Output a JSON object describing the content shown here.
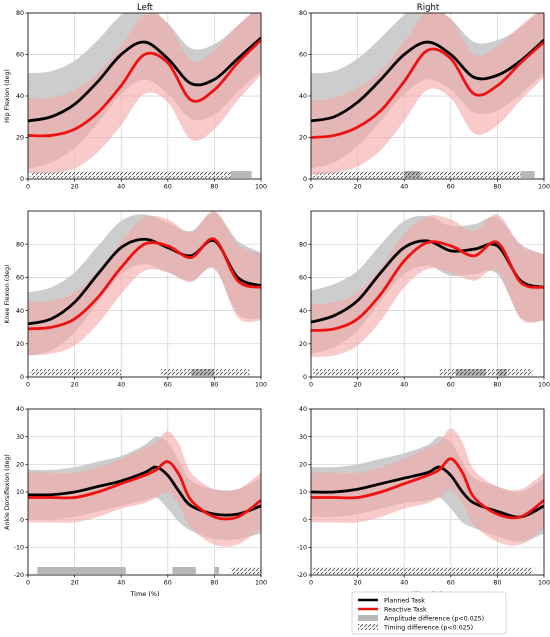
{
  "columns": [
    "Left",
    "Right"
  ],
  "xlabel": "Time (%)",
  "legend": {
    "planned": "Planned Task",
    "reactive": "Reactive Task",
    "amplitude": "Amplitude difference (p<0.025)",
    "timing": "Timing difference  (p<0.025)"
  },
  "colors": {
    "planned": "#000000",
    "reactive": "#ee1111",
    "planned_band": "#c4c4c4",
    "reactive_band": "#f4a6a6",
    "amplitude_bar": "#b8b8b8",
    "grid": "#d0d0d0"
  },
  "chart_data": [
    {
      "type": "line",
      "row": 0,
      "col": 0,
      "ylabel": "Hip Flexion (deg)",
      "xlim": [
        0,
        100
      ],
      "ylim": [
        0,
        80
      ],
      "xticks": [
        0,
        20,
        40,
        60,
        80,
        100
      ],
      "yticks": [
        0,
        20,
        40,
        60,
        80
      ],
      "series": [
        {
          "name": "Planned Task",
          "x": [
            0,
            10,
            20,
            30,
            40,
            50,
            60,
            70,
            80,
            90,
            100
          ],
          "values": [
            28,
            30,
            36,
            47,
            60,
            66,
            58,
            46,
            48,
            58,
            68
          ],
          "sd": [
            23,
            22,
            21,
            20,
            19,
            18,
            17,
            17,
            17,
            16,
            16
          ]
        },
        {
          "name": "Reactive Task",
          "x": [
            0,
            10,
            20,
            30,
            40,
            50,
            60,
            70,
            80,
            90,
            100
          ],
          "values": [
            21,
            21,
            24,
            32,
            45,
            60,
            56,
            38,
            43,
            56,
            67
          ],
          "sd": [
            18,
            18,
            19,
            19,
            19,
            19,
            19,
            19,
            19,
            18,
            17
          ]
        }
      ],
      "amplitude_difference": [
        [
          87,
          96
        ]
      ],
      "timing_difference": [
        [
          1,
          87
        ]
      ]
    },
    {
      "type": "line",
      "row": 0,
      "col": 1,
      "ylabel": "",
      "xlim": [
        0,
        100
      ],
      "ylim": [
        0,
        80
      ],
      "xticks": [
        0,
        20,
        40,
        60,
        80,
        100
      ],
      "yticks": [
        0,
        20,
        40,
        60,
        80
      ],
      "series": [
        {
          "name": "Planned Task",
          "x": [
            0,
            10,
            20,
            30,
            40,
            50,
            60,
            70,
            80,
            90,
            100
          ],
          "values": [
            28,
            30,
            37,
            48,
            60,
            66,
            60,
            49,
            50,
            57,
            67
          ],
          "sd": [
            23,
            22,
            21,
            20,
            19,
            18,
            17,
            17,
            17,
            16,
            16
          ]
        },
        {
          "name": "Reactive Task",
          "x": [
            0,
            10,
            20,
            30,
            40,
            50,
            60,
            70,
            80,
            90,
            100
          ],
          "values": [
            20,
            21,
            25,
            33,
            47,
            62,
            58,
            41,
            45,
            56,
            66
          ],
          "sd": [
            18,
            18,
            19,
            19,
            19,
            19,
            19,
            19,
            19,
            18,
            17
          ]
        }
      ],
      "amplitude_difference": [
        [
          40,
          47
        ],
        [
          90,
          96
        ]
      ],
      "timing_difference": [
        [
          1,
          90
        ]
      ]
    },
    {
      "type": "line",
      "row": 1,
      "col": 0,
      "ylabel": "Knee Flexion (deg)",
      "xlim": [
        0,
        100
      ],
      "ylim": [
        0,
        100
      ],
      "xticks": [
        0,
        20,
        40,
        60,
        80,
        100
      ],
      "yticks": [
        0,
        20,
        40,
        60,
        80
      ],
      "series": [
        {
          "name": "Planned Task",
          "x": [
            0,
            10,
            20,
            30,
            40,
            50,
            60,
            70,
            80,
            90,
            100
          ],
          "values": [
            32,
            35,
            45,
            62,
            78,
            83,
            78,
            73,
            82,
            60,
            55
          ],
          "sd": [
            19,
            19,
            18,
            17,
            16,
            15,
            15,
            15,
            17,
            22,
            20
          ]
        },
        {
          "name": "Reactive Task",
          "x": [
            0,
            10,
            20,
            30,
            40,
            50,
            60,
            70,
            80,
            90,
            100
          ],
          "values": [
            29,
            30,
            35,
            48,
            66,
            80,
            79,
            72,
            83,
            58,
            54
          ],
          "sd": [
            16,
            16,
            16,
            16,
            16,
            16,
            16,
            15,
            17,
            22,
            20
          ]
        }
      ],
      "amplitude_difference": [
        [
          70,
          80
        ]
      ],
      "timing_difference": [
        [
          1,
          40
        ],
        [
          57,
          95
        ]
      ]
    },
    {
      "type": "line",
      "row": 1,
      "col": 1,
      "ylabel": "",
      "xlim": [
        0,
        100
      ],
      "ylim": [
        0,
        100
      ],
      "xticks": [
        0,
        20,
        40,
        60,
        80,
        100
      ],
      "yticks": [
        0,
        20,
        40,
        60,
        80
      ],
      "series": [
        {
          "name": "Planned Task",
          "x": [
            0,
            10,
            20,
            30,
            40,
            50,
            60,
            70,
            80,
            90,
            100
          ],
          "values": [
            33,
            37,
            46,
            63,
            78,
            82,
            76,
            77,
            79,
            58,
            54
          ],
          "sd": [
            19,
            19,
            18,
            17,
            16,
            15,
            15,
            15,
            17,
            22,
            20
          ]
        },
        {
          "name": "Reactive Task",
          "x": [
            0,
            10,
            20,
            30,
            40,
            50,
            60,
            70,
            80,
            90,
            100
          ],
          "values": [
            28,
            29,
            35,
            50,
            70,
            81,
            79,
            73,
            81,
            57,
            54
          ],
          "sd": [
            16,
            16,
            16,
            16,
            16,
            16,
            16,
            15,
            17,
            22,
            20
          ]
        }
      ],
      "amplitude_difference": [
        [
          62,
          75
        ],
        [
          80,
          84
        ]
      ],
      "timing_difference": [
        [
          1,
          38
        ],
        [
          55,
          95
        ]
      ]
    },
    {
      "type": "line",
      "row": 2,
      "col": 0,
      "ylabel": "Ankle Dorsiflexion (deg)",
      "xlim": [
        0,
        100
      ],
      "ylim": [
        -20,
        40
      ],
      "xticks": [
        0,
        20,
        40,
        60,
        80,
        100
      ],
      "yticks": [
        -20,
        -10,
        0,
        10,
        20,
        30,
        40
      ],
      "series": [
        {
          "name": "Planned Task",
          "x": [
            0,
            10,
            20,
            30,
            40,
            50,
            55,
            60,
            65,
            70,
            80,
            90,
            100
          ],
          "values": [
            9,
            9,
            10,
            12,
            14,
            17,
            19,
            16,
            10,
            5,
            2,
            2,
            5
          ],
          "sd": [
            9,
            9,
            9,
            9,
            9,
            10,
            11,
            12,
            11,
            9,
            9,
            9,
            10
          ]
        },
        {
          "name": "Reactive Task",
          "x": [
            0,
            10,
            20,
            30,
            40,
            50,
            55,
            60,
            65,
            70,
            80,
            90,
            100
          ],
          "values": [
            8,
            8,
            8,
            10,
            13,
            16,
            18,
            21,
            16,
            7,
            1,
            1,
            7
          ],
          "sd": [
            9,
            9,
            9,
            9,
            9,
            10,
            10,
            11,
            11,
            10,
            10,
            10,
            10
          ]
        }
      ],
      "amplitude_difference": [
        [
          4,
          42
        ],
        [
          62,
          72
        ],
        [
          80,
          82
        ]
      ],
      "timing_difference": [
        [
          87,
          100
        ]
      ]
    },
    {
      "type": "line",
      "row": 2,
      "col": 1,
      "ylabel": "",
      "xlim": [
        0,
        100
      ],
      "ylim": [
        -20,
        40
      ],
      "xticks": [
        0,
        20,
        40,
        60,
        80,
        100
      ],
      "yticks": [
        -20,
        -10,
        0,
        10,
        20,
        30,
        40
      ],
      "series": [
        {
          "name": "Planned Task",
          "x": [
            0,
            10,
            20,
            30,
            40,
            50,
            55,
            60,
            65,
            70,
            80,
            90,
            100
          ],
          "values": [
            10,
            10,
            11,
            13,
            15,
            17,
            19,
            16,
            10,
            6,
            3,
            1,
            5
          ],
          "sd": [
            9,
            9,
            9,
            9,
            9,
            10,
            11,
            12,
            11,
            9,
            9,
            9,
            10
          ]
        },
        {
          "name": "Reactive Task",
          "x": [
            0,
            10,
            20,
            30,
            40,
            50,
            55,
            60,
            65,
            70,
            80,
            90,
            100
          ],
          "values": [
            8,
            8,
            8,
            10,
            13,
            16,
            18,
            22,
            17,
            8,
            2,
            1,
            7
          ],
          "sd": [
            9,
            9,
            9,
            9,
            9,
            10,
            10,
            11,
            11,
            10,
            10,
            10,
            10
          ]
        }
      ],
      "amplitude_difference": [],
      "timing_difference": [
        [
          1,
          95
        ]
      ]
    }
  ]
}
